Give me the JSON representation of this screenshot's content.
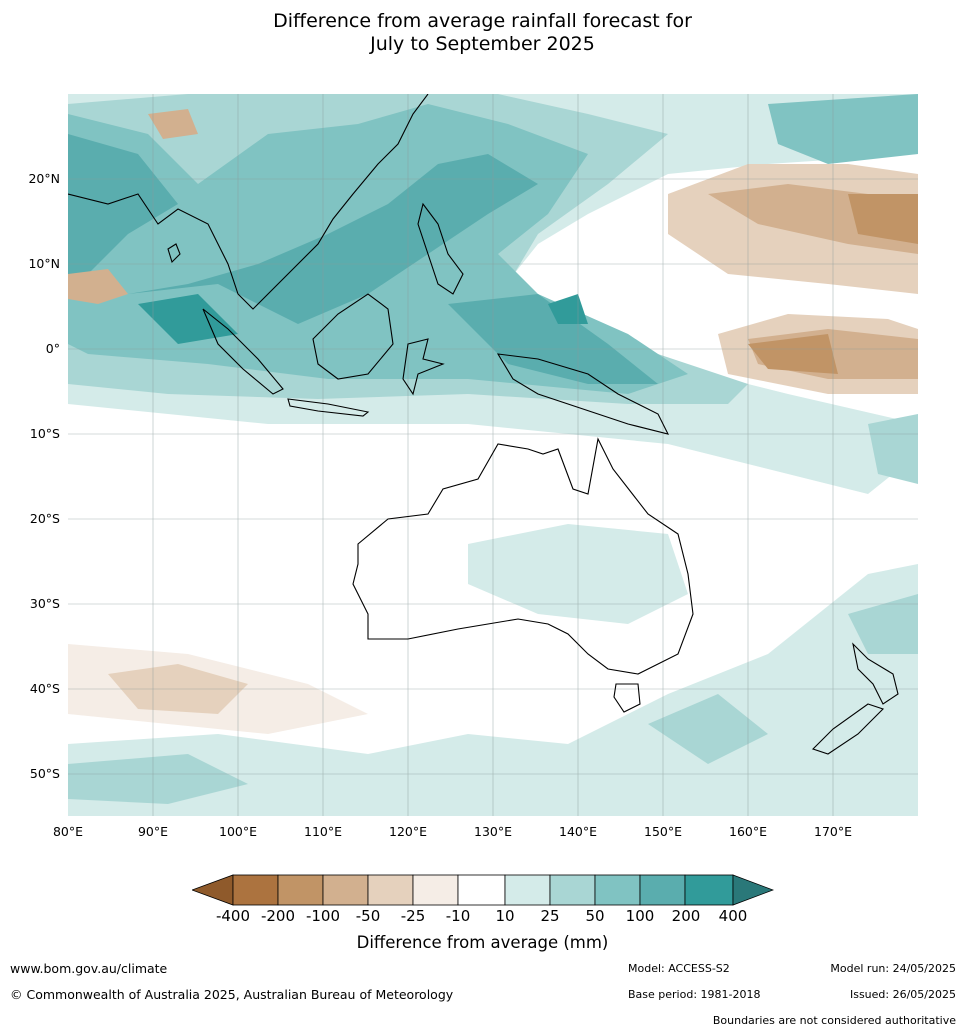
{
  "title": {
    "line1": "Difference from average rainfall forecast for",
    "line2": "July to September 2025"
  },
  "map": {
    "lat_labels": [
      "20°N",
      "10°N",
      "0°",
      "10°S",
      "20°S",
      "30°S",
      "40°S",
      "50°S"
    ],
    "lon_labels": [
      "80°E",
      "90°E",
      "100°E",
      "110°E",
      "120°E",
      "130°E",
      "140°E",
      "150°E",
      "160°E",
      "170°E"
    ],
    "lat_range": [
      -55,
      30
    ],
    "lon_range": [
      80,
      180
    ]
  },
  "colorbar": {
    "ticks": [
      "-400",
      "-200",
      "-100",
      "-50",
      "-25",
      "-10",
      "10",
      "25",
      "50",
      "100",
      "200",
      "400"
    ],
    "colors": [
      "#8f5a2b",
      "#ac733f",
      "#c19466",
      "#d2b08f",
      "#e5d1bd",
      "#f5ede6",
      "#ffffff",
      "#d4ebe9",
      "#a9d6d4",
      "#80c3c2",
      "#5aadae",
      "#319b9a",
      "#2a7879"
    ],
    "title": "Difference from average (mm)"
  },
  "footer": {
    "website": "www.bom.gov.au/climate",
    "copyright": "© Commonwealth of Australia 2025, Australian Bureau of Meteorology",
    "model": "Model: ACCESS-S2",
    "base_period": "Base period: 1981-2018",
    "model_run": "Model run: 24/05/2025",
    "issued": "Issued: 26/05/2025",
    "disclaimer": "Boundaries are not considered authoritative"
  }
}
